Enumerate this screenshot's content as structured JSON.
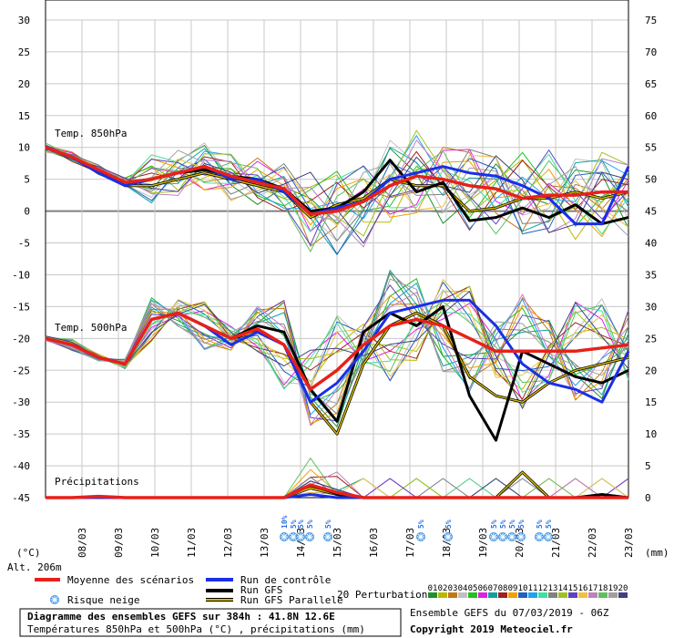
{
  "chart_data": {
    "type": "line",
    "left_axis": {
      "unit": "(°C)",
      "ticks": [
        30,
        25,
        20,
        15,
        10,
        5,
        0,
        -5,
        -10,
        -15,
        -20,
        -25,
        -30,
        -35,
        -40,
        -45
      ],
      "range": [
        -45,
        30
      ]
    },
    "right_axis": {
      "unit": "(mm)",
      "ticks": [
        75,
        70,
        65,
        60,
        55,
        50,
        45,
        40,
        35,
        30,
        25,
        20,
        15,
        10,
        5,
        0
      ]
    },
    "dates": [
      "08/03",
      "09/03",
      "10/03",
      "11/03",
      "12/03",
      "13/03",
      "14/03",
      "15/03",
      "16/03",
      "17/03",
      "18/03",
      "19/03",
      "20/03",
      "21/03",
      "22/03",
      "23/03"
    ],
    "annotations": {
      "t850": "Temp. 850hPa",
      "t500": "Temp. 500hPa",
      "precip": "Précipitations",
      "altitude": "Alt. 206m"
    },
    "snow_risk": [
      {
        "day": 13.55,
        "pct": "10%"
      },
      {
        "day": 13.8,
        "pct": "5%"
      },
      {
        "day": 14.0,
        "pct": "5%"
      },
      {
        "day": 14.25,
        "pct": "5%"
      },
      {
        "day": 14.75,
        "pct": "5%"
      },
      {
        "day": 17.3,
        "pct": "5%"
      },
      {
        "day": 18.05,
        "pct": "5%"
      },
      {
        "day": 19.3,
        "pct": "5%"
      },
      {
        "day": 19.55,
        "pct": "5%"
      },
      {
        "day": 19.8,
        "pct": "5%"
      },
      {
        "day": 20.05,
        "pct": "5%"
      },
      {
        "day": 20.55,
        "pct": "5%"
      },
      {
        "day": 20.8,
        "pct": "5%"
      }
    ],
    "series": [
      {
        "name": "Moyenne des scénarios",
        "color": "#e8201a",
        "t850": [
          10,
          8.5,
          6.5,
          4.5,
          5,
          6,
          7,
          5.5,
          4.5,
          3.5,
          -0.5,
          0,
          1.5,
          4,
          5.5,
          5,
          4,
          3.5,
          2,
          2.5,
          2.5,
          3,
          3
        ],
        "t500": [
          -20,
          -21,
          -23,
          -24,
          -17,
          -16,
          -18,
          -20,
          -18.5,
          -21,
          -28,
          -25,
          -21,
          -18,
          -17,
          -18,
          -20,
          -22,
          -22,
          -22,
          -22,
          -21.5,
          -21
        ],
        "precip": [
          0,
          0,
          0.2,
          0,
          0,
          0,
          0,
          0,
          0,
          0,
          2,
          0.8,
          0,
          0,
          0,
          0,
          0,
          0,
          0,
          0,
          0,
          0,
          0
        ]
      },
      {
        "name": "Run de contrôle",
        "color": "#1a2fe8",
        "t850": [
          10,
          8.5,
          6,
          4,
          5,
          6,
          7,
          5,
          5,
          3,
          -0.5,
          0.5,
          1.5,
          5,
          6,
          7,
          6,
          5.5,
          4,
          2,
          -2,
          -2,
          7
        ],
        "t500": [
          -20,
          -21,
          -23,
          -24,
          -17,
          -16,
          -18,
          -21,
          -19,
          -21,
          -30,
          -27,
          -22,
          -16,
          -15,
          -14,
          -14,
          -18,
          -24,
          -27,
          -28,
          -30,
          -22
        ],
        "precip": [
          0,
          0,
          0,
          0,
          0,
          0,
          0,
          0,
          0,
          0,
          0.5,
          0,
          0,
          0,
          0,
          0,
          0,
          0,
          0,
          0,
          0,
          0,
          0
        ]
      },
      {
        "name": "Run GFS",
        "color": "#000000",
        "t850": [
          10,
          8.5,
          6,
          4.5,
          5,
          6,
          6.5,
          5.5,
          5,
          3.5,
          0,
          0.5,
          3,
          8,
          3,
          4.5,
          -1.5,
          -1,
          0.5,
          -1,
          1,
          -2,
          -1
        ],
        "t500": [
          -20,
          -21,
          -23,
          -24,
          -17,
          -16,
          -18,
          -20,
          -18,
          -19,
          -28,
          -33,
          -19,
          -16,
          -18,
          -15,
          -29,
          -36,
          -22,
          -24,
          -26,
          -27,
          -25
        ],
        "precip": [
          0,
          0,
          0,
          0,
          0,
          0,
          0,
          0,
          0,
          0,
          2,
          0.6,
          0,
          0,
          0,
          0,
          0,
          0,
          0,
          0,
          0,
          0.5,
          0
        ]
      },
      {
        "name": "Run GFS Parallele",
        "color": "#d4b800",
        "t850": [
          10,
          8.5,
          6,
          4,
          4,
          5,
          6,
          5,
          4,
          3,
          -1,
          1,
          2,
          5,
          4,
          4,
          0,
          0.5,
          2,
          2,
          3,
          2,
          3
        ],
        "t500": [
          -20,
          -21,
          -23,
          -24,
          -17,
          -16,
          -18,
          -20,
          -19,
          -21,
          -30,
          -35,
          -24,
          -18,
          -16,
          -18,
          -26,
          -29,
          -30,
          -27,
          -25,
          -24,
          -23
        ],
        "precip": [
          0,
          0,
          0,
          0,
          0,
          0,
          0,
          0,
          0,
          0,
          1.5,
          0.5,
          0,
          0,
          0,
          0,
          0,
          0,
          4,
          0,
          0,
          0,
          0
        ]
      }
    ],
    "ensemble_label": "20 Perturbations",
    "perturbations": [
      {
        "n": "01",
        "color": "#1f8f2f"
      },
      {
        "n": "02",
        "color": "#b8b800"
      },
      {
        "n": "03",
        "color": "#c07818"
      },
      {
        "n": "04",
        "color": "#c0c0c0"
      },
      {
        "n": "05",
        "color": "#20c020"
      },
      {
        "n": "06",
        "color": "#e020e0"
      },
      {
        "n": "07",
        "color": "#10a0a0"
      },
      {
        "n": "08",
        "color": "#a02020"
      },
      {
        "n": "09",
        "color": "#f0a000"
      },
      {
        "n": "10",
        "color": "#2060c0"
      },
      {
        "n": "11",
        "color": "#20a0f0"
      },
      {
        "n": "12",
        "color": "#40e0a0"
      },
      {
        "n": "13",
        "color": "#808080"
      },
      {
        "n": "14",
        "color": "#a0c020"
      },
      {
        "n": "15",
        "color": "#6040c0"
      },
      {
        "n": "16",
        "color": "#f0c040"
      },
      {
        "n": "17",
        "color": "#c080c0"
      },
      {
        "n": "18",
        "color": "#60c060"
      },
      {
        "n": "19",
        "color": "#a0a0a0"
      },
      {
        "n": "20",
        "color": "#404080"
      }
    ]
  },
  "legend": {
    "mean": "Moyenne des scénarios",
    "control": "Run de contrôle",
    "gfs": "Run GFS",
    "para": "Run GFS Parallele",
    "snow": "Risque neige",
    "ens": "20 Perturbations"
  },
  "footer": {
    "title": "Diagramme des ensembles GEFS sur 384h : 41.8N 12.6E",
    "subtitle": "Températures 850hPa et 500hPa (°C) , précipitations (mm)",
    "run": "Ensemble GEFS du 07/03/2019 - 06Z",
    "copyright": "Copyright 2019 Meteociel.fr"
  }
}
